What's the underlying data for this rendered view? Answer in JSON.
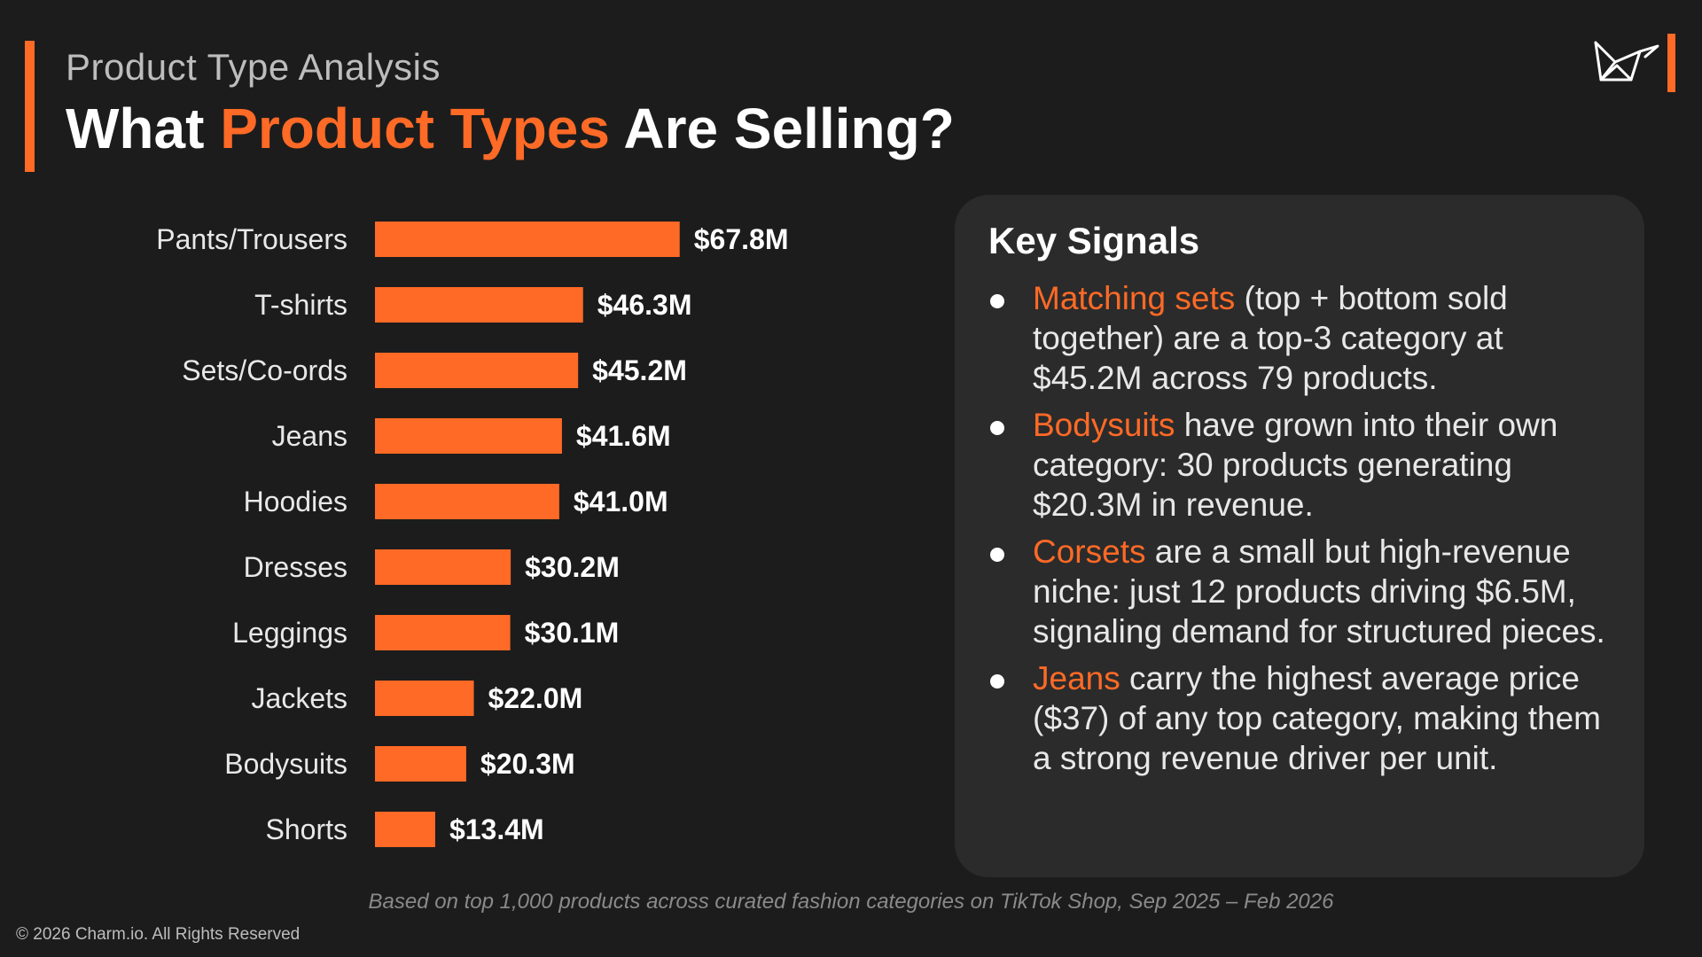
{
  "header": {
    "subtitle": "Product Type Analysis",
    "title_part1": "What ",
    "title_highlight": "Product Types",
    "title_part2": " Are Selling?"
  },
  "colors": {
    "accent": "#ff6a26",
    "background": "#1c1c1c",
    "panel": "#2b2b2b"
  },
  "chart_data": {
    "type": "bar",
    "orientation": "horizontal",
    "categories": [
      "Pants/Trousers",
      "T-shirts",
      "Sets/Co-ords",
      "Jeans",
      "Hoodies",
      "Dresses",
      "Leggings",
      "Jackets",
      "Bodysuits",
      "Shorts"
    ],
    "values": [
      67.8,
      46.3,
      45.2,
      41.6,
      41.0,
      30.2,
      30.1,
      22.0,
      20.3,
      13.4
    ],
    "value_labels": [
      "$67.8M",
      "$46.3M",
      "$45.2M",
      "$41.6M",
      "$41.0M",
      "$30.2M",
      "$30.1M",
      "$22.0M",
      "$20.3M",
      "$13.4M"
    ],
    "unit": "$M",
    "xlim": [
      0,
      100
    ],
    "grid": false,
    "legend": "none",
    "bar_color": "#ff6a26"
  },
  "signals": {
    "title": "Key Signals",
    "items": [
      {
        "keyword": "Matching sets",
        "text": " (top + bottom sold together) are a top-3 category at $45.2M across 79 products."
      },
      {
        "keyword": "Bodysuits",
        "text": " have grown into their own category: 30 products generating $20.3M in revenue."
      },
      {
        "keyword": "Corsets",
        "text": " are a small but high-revenue niche: just 12 products driving $6.5M, signaling demand for structured pieces."
      },
      {
        "keyword": "Jeans",
        "text": " carry the highest average price ($37) of any top category, making them a strong revenue driver per unit."
      }
    ]
  },
  "footer": {
    "note": "Based on top 1,000 products across curated fashion categories on TikTok Shop, Sep 2025 – Feb 2026",
    "copyright": "© 2026 Charm.io. All Rights Reserved"
  },
  "logo": {
    "icon": "paper-bird-icon"
  }
}
